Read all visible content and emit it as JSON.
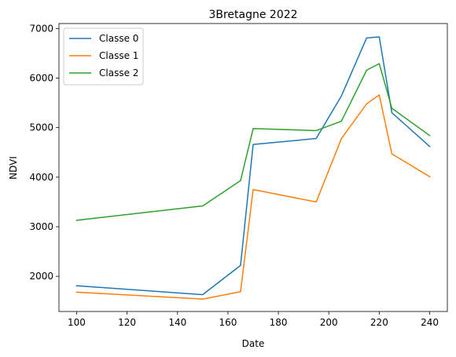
{
  "chart_data": {
    "type": "line",
    "title": "3Bretagne 2022",
    "xlabel": "Date",
    "ylabel": "NDVI",
    "xlim": [
      93.0,
      247.0
    ],
    "ylim": [
      1290,
      7100
    ],
    "xticks": [
      100,
      120,
      140,
      160,
      180,
      200,
      220,
      240
    ],
    "yticks": [
      2000,
      3000,
      4000,
      5000,
      6000,
      7000
    ],
    "grid": false,
    "legend_position": "top-left",
    "x": [
      100,
      150,
      165,
      170,
      195,
      205,
      215,
      220,
      225,
      240
    ],
    "series": [
      {
        "name": "Classe 0",
        "color": "#1f77b4",
        "values": [
          1810,
          1630,
          2220,
          4660,
          4780,
          5640,
          6810,
          6830,
          5300,
          4620
        ]
      },
      {
        "name": "Classe 1",
        "color": "#ff7f0e",
        "values": [
          1680,
          1540,
          1690,
          3750,
          3500,
          4780,
          5480,
          5660,
          4470,
          4010
        ]
      },
      {
        "name": "Classe 2",
        "color": "#2ca02c",
        "values": [
          3130,
          3420,
          3930,
          4980,
          4940,
          5130,
          6160,
          6290,
          5390,
          4840
        ]
      }
    ]
  }
}
